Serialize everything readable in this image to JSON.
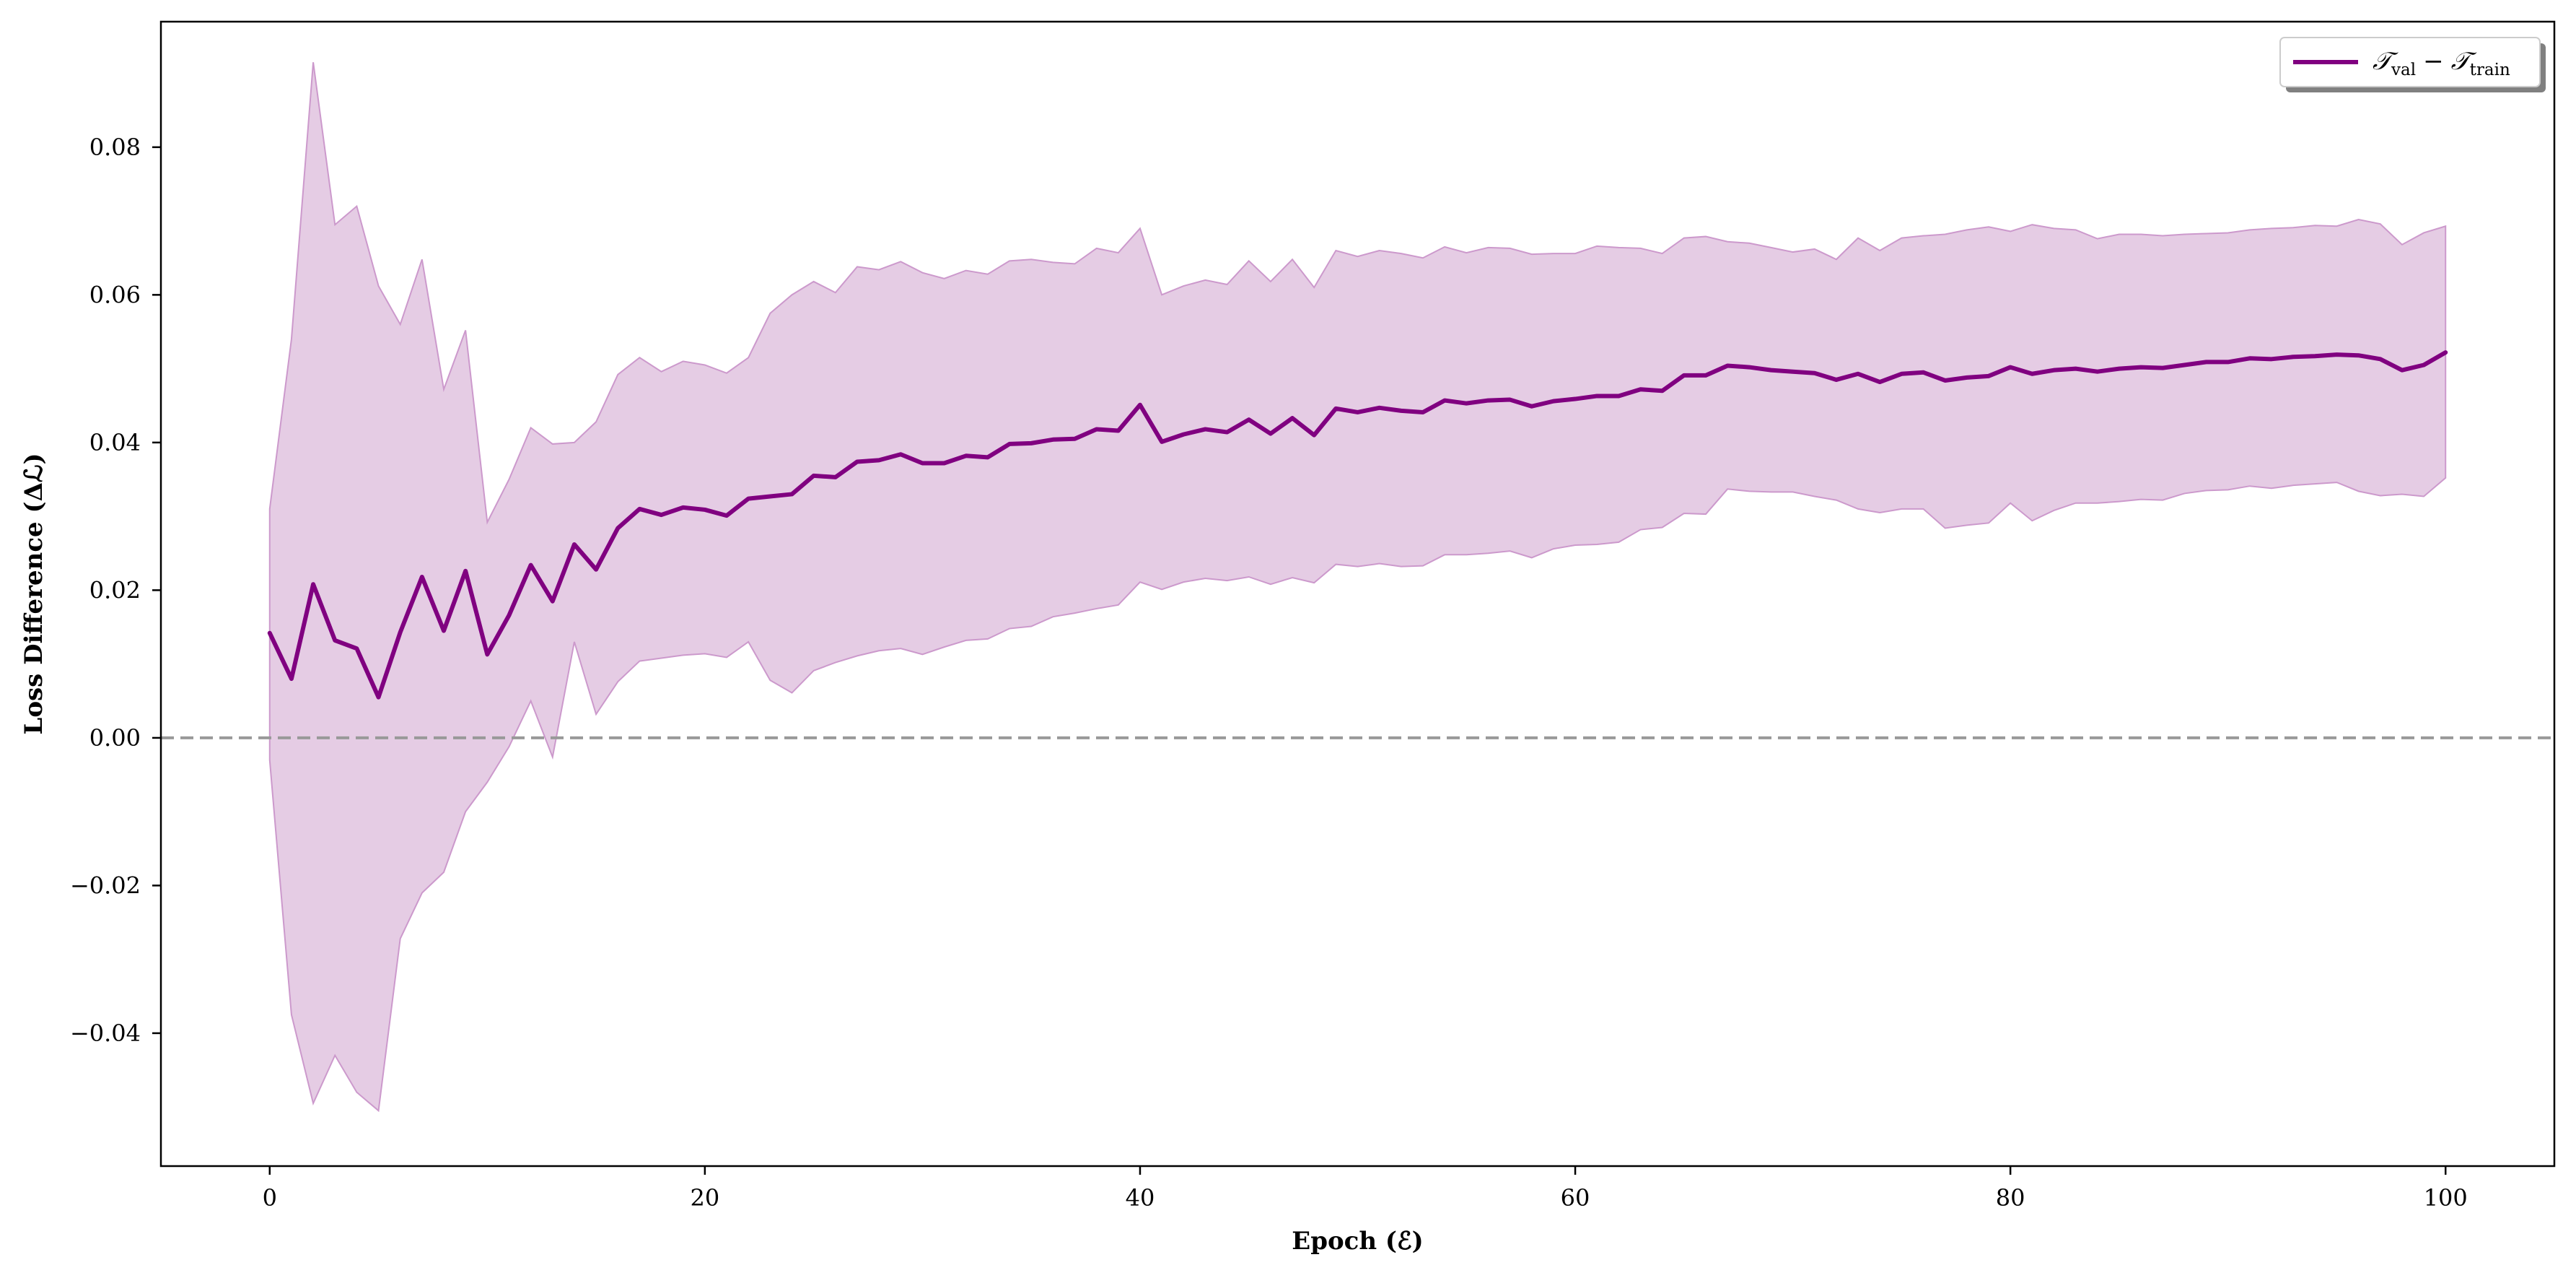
{
  "chart_data": {
    "type": "line",
    "title": "",
    "xlabel": "Epoch (ℰ)",
    "ylabel": "Loss Difference (Δℒ)",
    "xlim": [
      -5,
      105
    ],
    "ylim": [
      -0.058,
      0.097
    ],
    "xticks": [
      0,
      20,
      40,
      60,
      80,
      100
    ],
    "yticks": [
      -0.04,
      -0.02,
      0.0,
      0.02,
      0.04,
      0.06,
      0.08
    ],
    "xtick_labels": [
      "0",
      "20",
      "40",
      "60",
      "80",
      "100"
    ],
    "ytick_labels": [
      "−0.04",
      "−0.02",
      "0.00",
      "0.02",
      "0.04",
      "0.06",
      "0.08"
    ],
    "grid": false,
    "reference_line": {
      "y": 0.0,
      "style": "dashed",
      "color": "#999999"
    },
    "legend": {
      "position": "top-right",
      "entries": [
        {
          "symbol": "𝒯",
          "sub": "val",
          "op": "−",
          "symbol2": "𝒯",
          "sub2": "train"
        }
      ]
    },
    "colors": {
      "line": "#800080",
      "band_fill": "#e5cce4",
      "band_edge": "#cc99cc"
    },
    "series": [
      {
        "name": "𝒯val − 𝒯train",
        "x": [
          0,
          1,
          2,
          3,
          4,
          5,
          6,
          7,
          8,
          9,
          10,
          11,
          12,
          13,
          14,
          15,
          16,
          17,
          18,
          19,
          20,
          21,
          22,
          23,
          24,
          25,
          26,
          27,
          28,
          29,
          30,
          31,
          32,
          33,
          34,
          35,
          36,
          37,
          38,
          39,
          40,
          41,
          42,
          43,
          44,
          45,
          46,
          47,
          48,
          49,
          50,
          51,
          52,
          53,
          54,
          55,
          56,
          57,
          58,
          59,
          60,
          61,
          62,
          63,
          64,
          65,
          66,
          67,
          68,
          69,
          70,
          71,
          72,
          73,
          74,
          75,
          76,
          77,
          78,
          79,
          80,
          81,
          82,
          83,
          84,
          85,
          86,
          87,
          88,
          89,
          90,
          91,
          92,
          93,
          94,
          95,
          96,
          97,
          98,
          99,
          100
        ],
        "mean": [
          0.0142,
          0.008,
          0.0208,
          0.0132,
          0.0121,
          0.0055,
          0.0143,
          0.0218,
          0.0145,
          0.0226,
          0.0113,
          0.0166,
          0.0234,
          0.0185,
          0.0262,
          0.0228,
          0.0284,
          0.031,
          0.0302,
          0.0312,
          0.0309,
          0.0301,
          0.0324,
          0.0327,
          0.033,
          0.0355,
          0.0353,
          0.0374,
          0.0376,
          0.0384,
          0.0372,
          0.0372,
          0.0382,
          0.038,
          0.0398,
          0.0399,
          0.0404,
          0.0405,
          0.0418,
          0.0416,
          0.0451,
          0.0401,
          0.0411,
          0.0418,
          0.0414,
          0.0431,
          0.0412,
          0.0433,
          0.041,
          0.0446,
          0.0441,
          0.0447,
          0.0443,
          0.0441,
          0.0457,
          0.0453,
          0.0457,
          0.0458,
          0.0449,
          0.0456,
          0.0459,
          0.0463,
          0.0463,
          0.0472,
          0.047,
          0.0491,
          0.0491,
          0.0504,
          0.0502,
          0.0498,
          0.0496,
          0.0494,
          0.0485,
          0.0493,
          0.0482,
          0.0493,
          0.0495,
          0.0484,
          0.0488,
          0.049,
          0.0502,
          0.0493,
          0.0498,
          0.05,
          0.0496,
          0.05,
          0.0502,
          0.0501,
          0.0505,
          0.0509,
          0.0509,
          0.0514,
          0.0513,
          0.0516,
          0.0517,
          0.0519,
          0.0518,
          0.0513,
          0.0498,
          0.0505,
          0.0522
        ],
        "upper": [
          0.031,
          0.054,
          0.0915,
          0.0695,
          0.072,
          0.0612,
          0.056,
          0.0648,
          0.0472,
          0.0552,
          0.0292,
          0.035,
          0.042,
          0.0398,
          0.04,
          0.0428,
          0.0492,
          0.0515,
          0.0496,
          0.051,
          0.0505,
          0.0494,
          0.0515,
          0.0575,
          0.06,
          0.0618,
          0.0603,
          0.0638,
          0.0634,
          0.0645,
          0.063,
          0.0622,
          0.0633,
          0.0628,
          0.0646,
          0.0648,
          0.0644,
          0.0642,
          0.0663,
          0.0657,
          0.069,
          0.06,
          0.0612,
          0.062,
          0.0614,
          0.0646,
          0.0618,
          0.0648,
          0.061,
          0.066,
          0.0652,
          0.066,
          0.0656,
          0.065,
          0.0665,
          0.0657,
          0.0664,
          0.0663,
          0.0655,
          0.0656,
          0.0656,
          0.0666,
          0.0664,
          0.0663,
          0.0656,
          0.0677,
          0.0679,
          0.0672,
          0.067,
          0.0664,
          0.0658,
          0.0662,
          0.0648,
          0.0677,
          0.066,
          0.0677,
          0.068,
          0.0682,
          0.0688,
          0.0692,
          0.0686,
          0.0695,
          0.069,
          0.0688,
          0.0676,
          0.0682,
          0.0682,
          0.068,
          0.0682,
          0.0683,
          0.0684,
          0.0688,
          0.069,
          0.0691,
          0.0694,
          0.0693,
          0.0702,
          0.0696,
          0.0668,
          0.0684,
          0.0693
        ],
        "lower": [
          -0.003,
          -0.0375,
          -0.0495,
          -0.043,
          -0.048,
          -0.0505,
          -0.0272,
          -0.021,
          -0.0182,
          -0.01,
          -0.006,
          -0.0012,
          0.005,
          -0.0026,
          0.013,
          0.0032,
          0.0076,
          0.0104,
          0.0108,
          0.0112,
          0.0114,
          0.0109,
          0.013,
          0.0078,
          0.0061,
          0.0091,
          0.0102,
          0.0111,
          0.0118,
          0.0121,
          0.0113,
          0.0123,
          0.0132,
          0.0134,
          0.0148,
          0.0151,
          0.0164,
          0.0169,
          0.0175,
          0.018,
          0.0211,
          0.0201,
          0.0211,
          0.0216,
          0.0213,
          0.0218,
          0.0208,
          0.0217,
          0.021,
          0.0235,
          0.0232,
          0.0236,
          0.0232,
          0.0233,
          0.0248,
          0.0248,
          0.025,
          0.0253,
          0.0244,
          0.0256,
          0.0261,
          0.0262,
          0.0265,
          0.0282,
          0.0285,
          0.0304,
          0.0303,
          0.0337,
          0.0334,
          0.0333,
          0.0333,
          0.0327,
          0.0322,
          0.031,
          0.0305,
          0.031,
          0.031,
          0.0284,
          0.0288,
          0.0291,
          0.0318,
          0.0294,
          0.0308,
          0.0318,
          0.0318,
          0.032,
          0.0323,
          0.0322,
          0.0331,
          0.0335,
          0.0336,
          0.0341,
          0.0338,
          0.0342,
          0.0344,
          0.0346,
          0.0334,
          0.0328,
          0.033,
          0.0327,
          0.0352
        ]
      }
    ]
  }
}
